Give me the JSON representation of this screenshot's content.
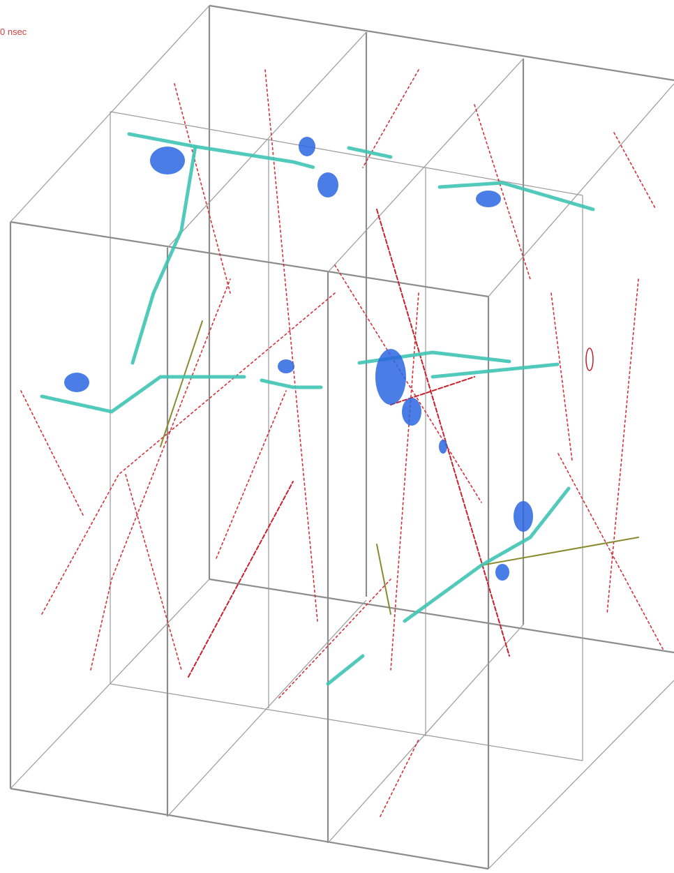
{
  "timestamp": "0 nsec"
}
